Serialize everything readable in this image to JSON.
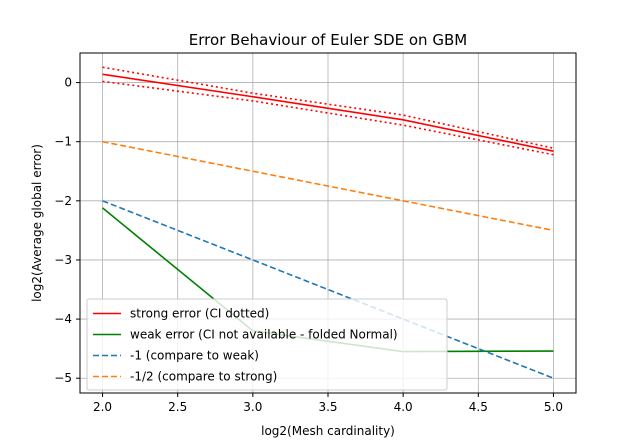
{
  "chart_data": {
    "type": "line",
    "title": "Error Behaviour of Euler SDE on GBM",
    "xlabel": "log2(Mesh cardinality)",
    "ylabel": "log2(Average global error)",
    "xlim": [
      1.85,
      5.15
    ],
    "ylim": [
      -5.25,
      0.5
    ],
    "xticks": [
      2.0,
      2.5,
      3.0,
      3.5,
      4.0,
      4.5,
      5.0
    ],
    "xtick_labels": [
      "2.0",
      "2.5",
      "3.0",
      "3.5",
      "4.0",
      "4.5",
      "5.0"
    ],
    "yticks": [
      0,
      -1,
      -2,
      -3,
      -4,
      -5
    ],
    "ytick_labels": [
      "0",
      "−1",
      "−2",
      "−3",
      "−4",
      "−5"
    ],
    "grid": true,
    "legend_position": "lower-left",
    "series": [
      {
        "name": "strong error (CI dotted)",
        "color": "#ff0000",
        "style": "solid",
        "x": [
          2,
          3,
          4,
          5
        ],
        "y": [
          0.14,
          -0.24,
          -0.63,
          -1.16
        ]
      },
      {
        "name": "",
        "color": "#ff0000",
        "style": "dotted",
        "legend": false,
        "x": [
          2,
          3,
          4,
          5
        ],
        "y": [
          0.26,
          -0.18,
          -0.55,
          -1.11
        ]
      },
      {
        "name": "",
        "color": "#ff0000",
        "style": "dotted",
        "legend": false,
        "x": [
          2,
          3,
          4,
          5
        ],
        "y": [
          0.02,
          -0.31,
          -0.72,
          -1.22
        ]
      },
      {
        "name": "weak error (CI not available - folded Normal)",
        "color": "#008000",
        "style": "solid",
        "x": [
          2,
          3,
          4,
          5
        ],
        "y": [
          -2.12,
          -4.2,
          -4.55,
          -4.54
        ]
      },
      {
        "name": "-1 (compare to weak)",
        "color": "#1f77b4",
        "style": "dashed",
        "x": [
          2,
          3,
          4,
          5
        ],
        "y": [
          -2,
          -3,
          -4,
          -5
        ]
      },
      {
        "name": "-1/2 (compare to strong)",
        "color": "#ff7f0e",
        "style": "dashed",
        "x": [
          2,
          3,
          4,
          5
        ],
        "y": [
          -1,
          -1.5,
          -2,
          -2.5
        ]
      }
    ]
  }
}
